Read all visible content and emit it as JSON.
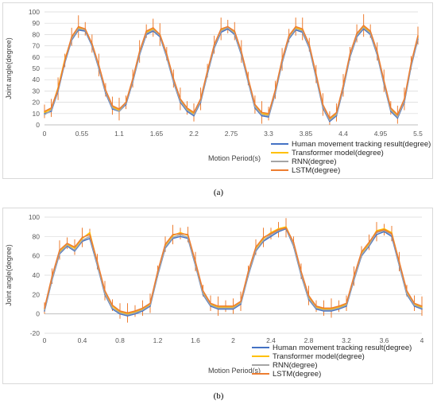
{
  "captions": {
    "a": "(a)",
    "b": "(b)"
  },
  "colors": {
    "human": "#4472c4",
    "transformer": "#ffc000",
    "rnn": "#a5a5a5",
    "lstm": "#ed7d31",
    "gridline": "#d9d9d9",
    "axis": "#bfbfbf"
  },
  "chart_data": [
    {
      "type": "line",
      "panel": "a",
      "xlabel": "Motion Period(s)",
      "ylabel": "Joint angle(degree)",
      "xlim": [
        0,
        5.5
      ],
      "ylim": [
        0,
        100
      ],
      "x_ticks": [
        0,
        0.55,
        1.1,
        1.65,
        2.2,
        2.75,
        3.3,
        3.85,
        4.4,
        4.95,
        5.5
      ],
      "x_tick_labels": [
        "0",
        "0.55",
        "1.1",
        "1.65",
        "2.2",
        "2.75",
        "3.3",
        "3.85",
        "4.4",
        "4.95",
        "5.5"
      ],
      "y_ticks": [
        0,
        10,
        20,
        30,
        40,
        50,
        60,
        70,
        80,
        90,
        100
      ],
      "grid": "horizontal",
      "legend_position": "bottom-right",
      "x": [
        0.0,
        0.1,
        0.2,
        0.3,
        0.4,
        0.5,
        0.6,
        0.7,
        0.8,
        0.9,
        1.0,
        1.1,
        1.2,
        1.3,
        1.4,
        1.5,
        1.6,
        1.7,
        1.8,
        1.9,
        2.0,
        2.1,
        2.2,
        2.3,
        2.4,
        2.5,
        2.6,
        2.7,
        2.8,
        2.9,
        3.0,
        3.1,
        3.2,
        3.3,
        3.4,
        3.5,
        3.6,
        3.7,
        3.8,
        3.9,
        4.0,
        4.1,
        4.2,
        4.3,
        4.4,
        4.5,
        4.6,
        4.7,
        4.8,
        4.9,
        5.0,
        5.1,
        5.2,
        5.3,
        5.4,
        5.5
      ],
      "series": [
        {
          "name": "Human movement tracking result(degree)",
          "color_key": "human",
          "values": [
            10,
            12,
            30,
            55,
            75,
            84,
            83,
            70,
            50,
            28,
            14,
            12,
            18,
            38,
            62,
            80,
            83,
            78,
            60,
            38,
            20,
            12,
            8,
            20,
            45,
            68,
            82,
            85,
            80,
            62,
            38,
            15,
            8,
            7,
            28,
            55,
            76,
            84,
            82,
            68,
            42,
            15,
            3,
            8,
            32,
            60,
            78,
            85,
            80,
            62,
            36,
            12,
            6,
            20,
            52,
            76
          ]
        },
        {
          "name": "Transformer model(degree)",
          "color_key": "transformer",
          "values": [
            11,
            14,
            33,
            58,
            77,
            86,
            84,
            72,
            52,
            30,
            16,
            13,
            20,
            40,
            64,
            82,
            85,
            80,
            62,
            40,
            22,
            14,
            10,
            22,
            47,
            70,
            84,
            86,
            82,
            64,
            40,
            17,
            10,
            9,
            30,
            57,
            78,
            86,
            84,
            70,
            44,
            17,
            5,
            10,
            34,
            62,
            80,
            87,
            82,
            64,
            38,
            14,
            8,
            22,
            54,
            78
          ]
        },
        {
          "name": "RNN(degree)",
          "color_key": "rnn",
          "values": [
            9,
            13,
            31,
            56,
            76,
            85,
            84,
            71,
            51,
            29,
            15,
            12,
            19,
            39,
            63,
            81,
            84,
            79,
            61,
            39,
            21,
            13,
            9,
            21,
            46,
            69,
            83,
            86,
            81,
            63,
            39,
            16,
            9,
            8,
            29,
            56,
            77,
            85,
            83,
            69,
            43,
            16,
            4,
            9,
            33,
            61,
            79,
            86,
            81,
            63,
            37,
            13,
            7,
            21,
            53,
            77
          ]
        },
        {
          "name": "LSTM(degree)",
          "color_key": "lstm",
          "values": [
            12,
            15,
            32,
            57,
            78,
            87,
            85,
            72,
            53,
            31,
            17,
            14,
            20,
            41,
            65,
            83,
            86,
            80,
            63,
            41,
            23,
            15,
            11,
            23,
            48,
            71,
            85,
            87,
            83,
            65,
            41,
            18,
            11,
            10,
            31,
            58,
            79,
            87,
            85,
            71,
            45,
            18,
            6,
            11,
            35,
            63,
            81,
            88,
            83,
            65,
            39,
            15,
            9,
            23,
            55,
            79
          ]
        }
      ]
    },
    {
      "type": "line",
      "panel": "b",
      "xlabel": "Motion Period(s)",
      "ylabel": "Joint angle(degree)",
      "xlim": [
        0,
        4
      ],
      "ylim": [
        -20,
        100
      ],
      "x_ticks": [
        0,
        0.4,
        0.8,
        1.2,
        1.6,
        2.0,
        2.4,
        2.8,
        3.2,
        3.6,
        4.0
      ],
      "x_tick_labels": [
        "0",
        "0.4",
        "0.8",
        "1.2",
        "1.6",
        "2",
        "2.4",
        "2.8",
        "3.2",
        "3.6",
        "4"
      ],
      "y_ticks": [
        -20,
        0,
        20,
        40,
        60,
        80,
        100
      ],
      "grid": "horizontal",
      "legend_position": "bottom-right",
      "x": [
        0.0,
        0.08,
        0.16,
        0.24,
        0.32,
        0.4,
        0.48,
        0.56,
        0.64,
        0.72,
        0.8,
        0.88,
        0.96,
        1.04,
        1.12,
        1.2,
        1.28,
        1.36,
        1.44,
        1.52,
        1.6,
        1.68,
        1.76,
        1.84,
        1.92,
        2.0,
        2.08,
        2.16,
        2.24,
        2.32,
        2.4,
        2.48,
        2.56,
        2.64,
        2.72,
        2.8,
        2.88,
        2.96,
        3.04,
        3.12,
        3.2,
        3.28,
        3.36,
        3.44,
        3.52,
        3.6,
        3.68,
        3.76,
        3.84,
        3.92,
        4.0
      ],
      "series": [
        {
          "name": "Human movement tracking result(degree)",
          "color_key": "human",
          "values": [
            3,
            35,
            62,
            70,
            65,
            75,
            78,
            50,
            20,
            5,
            0,
            -2,
            0,
            3,
            8,
            40,
            68,
            78,
            80,
            78,
            50,
            20,
            8,
            5,
            5,
            5,
            10,
            40,
            65,
            75,
            80,
            85,
            88,
            70,
            40,
            15,
            5,
            3,
            3,
            5,
            8,
            35,
            60,
            70,
            82,
            85,
            80,
            50,
            20,
            8,
            5
          ]
        },
        {
          "name": "Transformer model(degree)",
          "color_key": "transformer",
          "values": [
            5,
            38,
            64,
            72,
            68,
            78,
            84,
            53,
            23,
            8,
            2,
            0,
            2,
            5,
            10,
            43,
            71,
            81,
            84,
            81,
            53,
            23,
            10,
            7,
            7,
            7,
            12,
            43,
            68,
            78,
            84,
            88,
            90,
            73,
            43,
            18,
            7,
            5,
            5,
            7,
            10,
            38,
            63,
            73,
            86,
            88,
            84,
            53,
            23,
            10,
            7
          ]
        },
        {
          "name": "RNN(degree)",
          "color_key": "rnn",
          "values": [
            4,
            36,
            63,
            71,
            66,
            76,
            80,
            51,
            21,
            6,
            1,
            -1,
            1,
            4,
            9,
            41,
            69,
            79,
            82,
            79,
            51,
            21,
            9,
            6,
            6,
            6,
            11,
            41,
            66,
            76,
            82,
            86,
            89,
            71,
            41,
            16,
            6,
            4,
            4,
            6,
            9,
            36,
            61,
            71,
            84,
            86,
            82,
            51,
            21,
            9,
            6
          ]
        },
        {
          "name": "LSTM(degree)",
          "color_key": "lstm",
          "values": [
            6,
            39,
            66,
            73,
            69,
            79,
            82,
            54,
            24,
            9,
            3,
            1,
            3,
            6,
            11,
            44,
            72,
            82,
            83,
            82,
            54,
            24,
            11,
            8,
            8,
            8,
            13,
            44,
            69,
            79,
            83,
            87,
            89,
            74,
            44,
            19,
            8,
            6,
            6,
            8,
            11,
            39,
            64,
            74,
            85,
            87,
            83,
            54,
            24,
            11,
            8
          ]
        }
      ]
    }
  ]
}
